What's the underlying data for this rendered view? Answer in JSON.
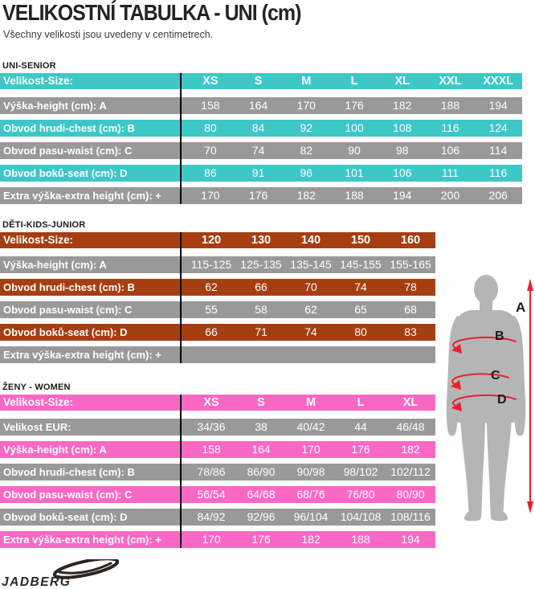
{
  "page": {
    "title": "VELIKOSTNÍ TABULKA - UNI (cm)",
    "subtitle": "Všechny velikosti jsou uvedeny v centimetrech."
  },
  "colors": {
    "row_gray": "#999999",
    "divider": "#000000",
    "text_on_row": "#ffffff",
    "silhouette": "#b5b5b5",
    "arrow_red": "#e8212e",
    "brand_dark": "#2b2623"
  },
  "tables": [
    {
      "id": "uni-senior",
      "section_label": "UNI-SENIOR",
      "accent_color": "#3ec7c7",
      "header": {
        "label": "Velikost-Size:",
        "cells": [
          "XS",
          "S",
          "M",
          "L",
          "XL",
          "XXL",
          "XXXL"
        ]
      },
      "rows": [
        {
          "label": "Výška-height (cm): A",
          "variant": "gray",
          "cells": [
            "158",
            "164",
            "170",
            "176",
            "182",
            "188",
            "194"
          ]
        },
        {
          "label": "Obvod hrudi-chest (cm): B",
          "variant": "accent",
          "cells": [
            "80",
            "84",
            "92",
            "100",
            "108",
            "116",
            "124"
          ]
        },
        {
          "label": "Obvod pasu-waist (cm): C",
          "variant": "gray",
          "cells": [
            "70",
            "74",
            "82",
            "90",
            "98",
            "106",
            "114"
          ]
        },
        {
          "label": "Obvod boků-seat (cm): D",
          "variant": "accent",
          "cells": [
            "86",
            "91",
            "96",
            "101",
            "106",
            "111",
            "116"
          ]
        },
        {
          "label": "Extra výška-extra height (cm): +",
          "variant": "gray",
          "cells": [
            "170",
            "176",
            "182",
            "188",
            "194",
            "200",
            "206"
          ]
        }
      ]
    },
    {
      "id": "kids-junior",
      "section_label": "DĚTI-KIDS-JUNIOR",
      "accent_color": "#a53e11",
      "header": {
        "label": "Velikost-Size:",
        "cells": [
          "120",
          "130",
          "140",
          "150",
          "160"
        ]
      },
      "rows": [
        {
          "label": "Výška-height (cm): A",
          "variant": "gray",
          "cells": [
            "115-125",
            "125-135",
            "135-145",
            "145-155",
            "155-165"
          ]
        },
        {
          "label": "Obvod hrudi-chest (cm): B",
          "variant": "accent",
          "cells": [
            "62",
            "66",
            "70",
            "74",
            "78"
          ]
        },
        {
          "label": "Obvod pasu-waist (cm): C",
          "variant": "gray",
          "cells": [
            "55",
            "58",
            "62",
            "65",
            "68"
          ]
        },
        {
          "label": "Obvod boků-seat (cm): D",
          "variant": "accent",
          "cells": [
            "66",
            "71",
            "74",
            "80",
            "83"
          ]
        },
        {
          "label": "Extra výška-extra height (cm): +",
          "variant": "gray",
          "cells": [
            "",
            "",
            "",
            "",
            ""
          ]
        }
      ]
    },
    {
      "id": "women",
      "section_label": "ŽENY - WOMEN",
      "accent_color": "#fa68c5",
      "header": {
        "label": "Velikost-Size:",
        "cells": [
          "XS",
          "S",
          "M",
          "L",
          "XL"
        ]
      },
      "rows": [
        {
          "label": "Velikost EUR:",
          "variant": "gray",
          "cells": [
            "34/36",
            "38",
            "40/42",
            "44",
            "46/48"
          ]
        },
        {
          "label": "Výška-height (cm): A",
          "variant": "accent",
          "cells": [
            "158",
            "164",
            "170",
            "176",
            "182"
          ]
        },
        {
          "label": "Obvod hrudi-chest (cm): B",
          "variant": "gray",
          "cells": [
            "78/86",
            "86/90",
            "90/98",
            "98/102",
            "102/112"
          ]
        },
        {
          "label": "Obvod pasu-waist (cm): C",
          "variant": "accent",
          "cells": [
            "56/54",
            "64/68",
            "68/76",
            "76/80",
            "80/90"
          ]
        },
        {
          "label": "Obvod boků-seat (cm): D",
          "variant": "gray",
          "cells": [
            "84/92",
            "92/96",
            "96/104",
            "104/108",
            "108/116"
          ]
        },
        {
          "label": "Extra výška-extra height (cm): +",
          "variant": "accent",
          "cells": [
            "170",
            "176",
            "182",
            "188",
            "194"
          ]
        }
      ]
    }
  ],
  "figure": {
    "labels": {
      "height": "A",
      "chest": "B",
      "waist": "C",
      "seat": "D"
    }
  },
  "footer": {
    "brand": "JADBERG",
    "trademark": "™"
  }
}
